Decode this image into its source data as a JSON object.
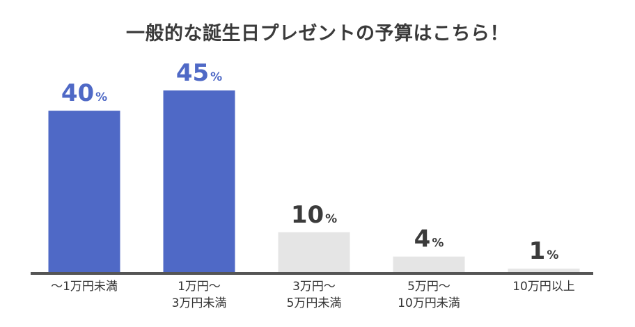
{
  "chart_data": {
    "type": "bar",
    "title": "一般的な誕生日プレゼントの予算はこちら！",
    "categories": [
      [
        "〜1万円未満"
      ],
      [
        "1万円〜",
        "3万円未満"
      ],
      [
        "3万円〜",
        "5万円未満"
      ],
      [
        "5万円〜",
        "10万円未満"
      ],
      [
        "10万円以上"
      ]
    ],
    "values": [
      40,
      45,
      10,
      4,
      1
    ],
    "unit": "%",
    "ylim": [
      0,
      45
    ],
    "grid": false,
    "highlight_color": "#4f69c6",
    "base_color": "#e5e5e5",
    "highlight_text_color": "#4f69c6",
    "base_text_color": "#3b3b3b",
    "highlighted": [
      true,
      true,
      false,
      false,
      false
    ]
  }
}
